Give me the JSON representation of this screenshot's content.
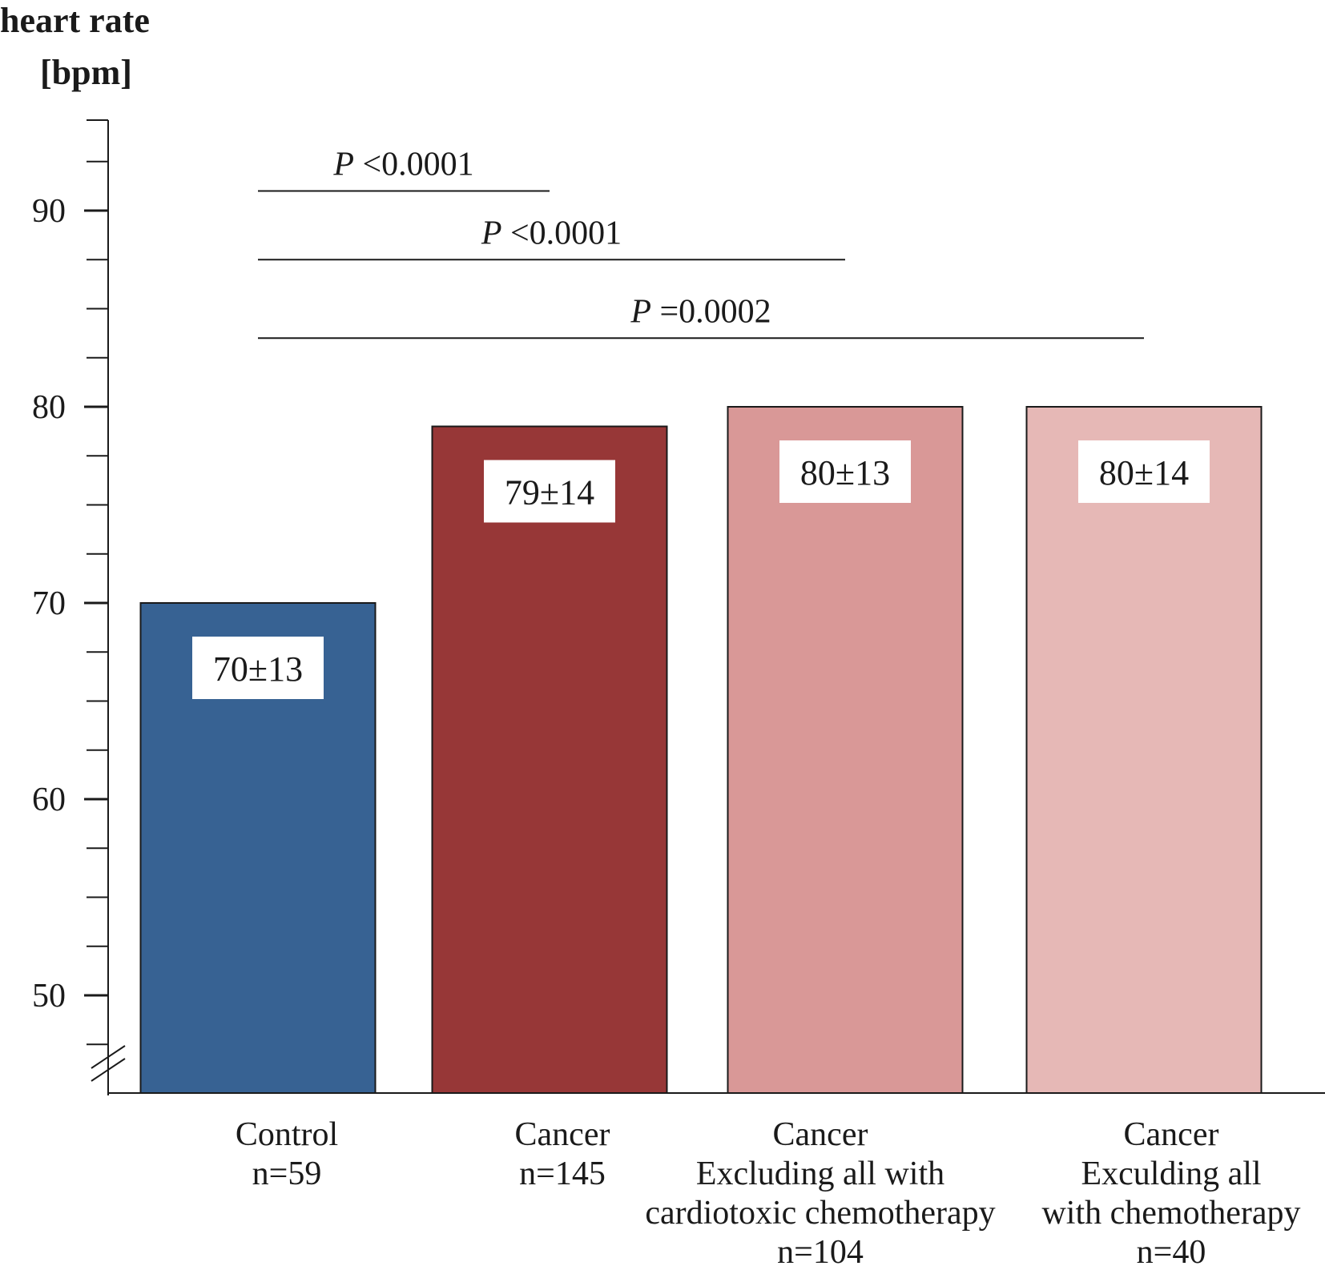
{
  "chart_data": {
    "type": "bar",
    "ylabel_lines": [
      "heart rate",
      "[bpm]"
    ],
    "ylim": [
      45,
      95
    ],
    "yticks_major": [
      50,
      60,
      70,
      80,
      90
    ],
    "yticks_minor_step": 2.5,
    "axis_break": true,
    "categories": [
      {
        "lines": [
          "Control",
          "n=59"
        ]
      },
      {
        "lines": [
          "Cancer",
          "n=145"
        ]
      },
      {
        "lines": [
          "Cancer",
          "Excluding all with",
          "cardiotoxic chemotherapy",
          "n=104"
        ]
      },
      {
        "lines": [
          "Cancer",
          "Exculding all",
          "with chemotherapy",
          "n=40"
        ]
      }
    ],
    "values": [
      70,
      79,
      80,
      80
    ],
    "data_labels": [
      "70±13",
      "79±14",
      "80±13",
      "80±14"
    ],
    "colors": [
      "#376293",
      "#973737",
      "#d99897",
      "#e6b8b6"
    ],
    "annotations": [
      {
        "p_symbol": "P",
        "p_text": " <0.0001",
        "from": 0,
        "to": 1,
        "y": 91
      },
      {
        "p_symbol": "P",
        "p_text": " <0.0001",
        "from": 0,
        "to": 2,
        "y": 87.5
      },
      {
        "p_symbol": "P",
        "p_text": " =0.0002",
        "from": 0,
        "to": 3,
        "y": 83.5
      }
    ]
  }
}
